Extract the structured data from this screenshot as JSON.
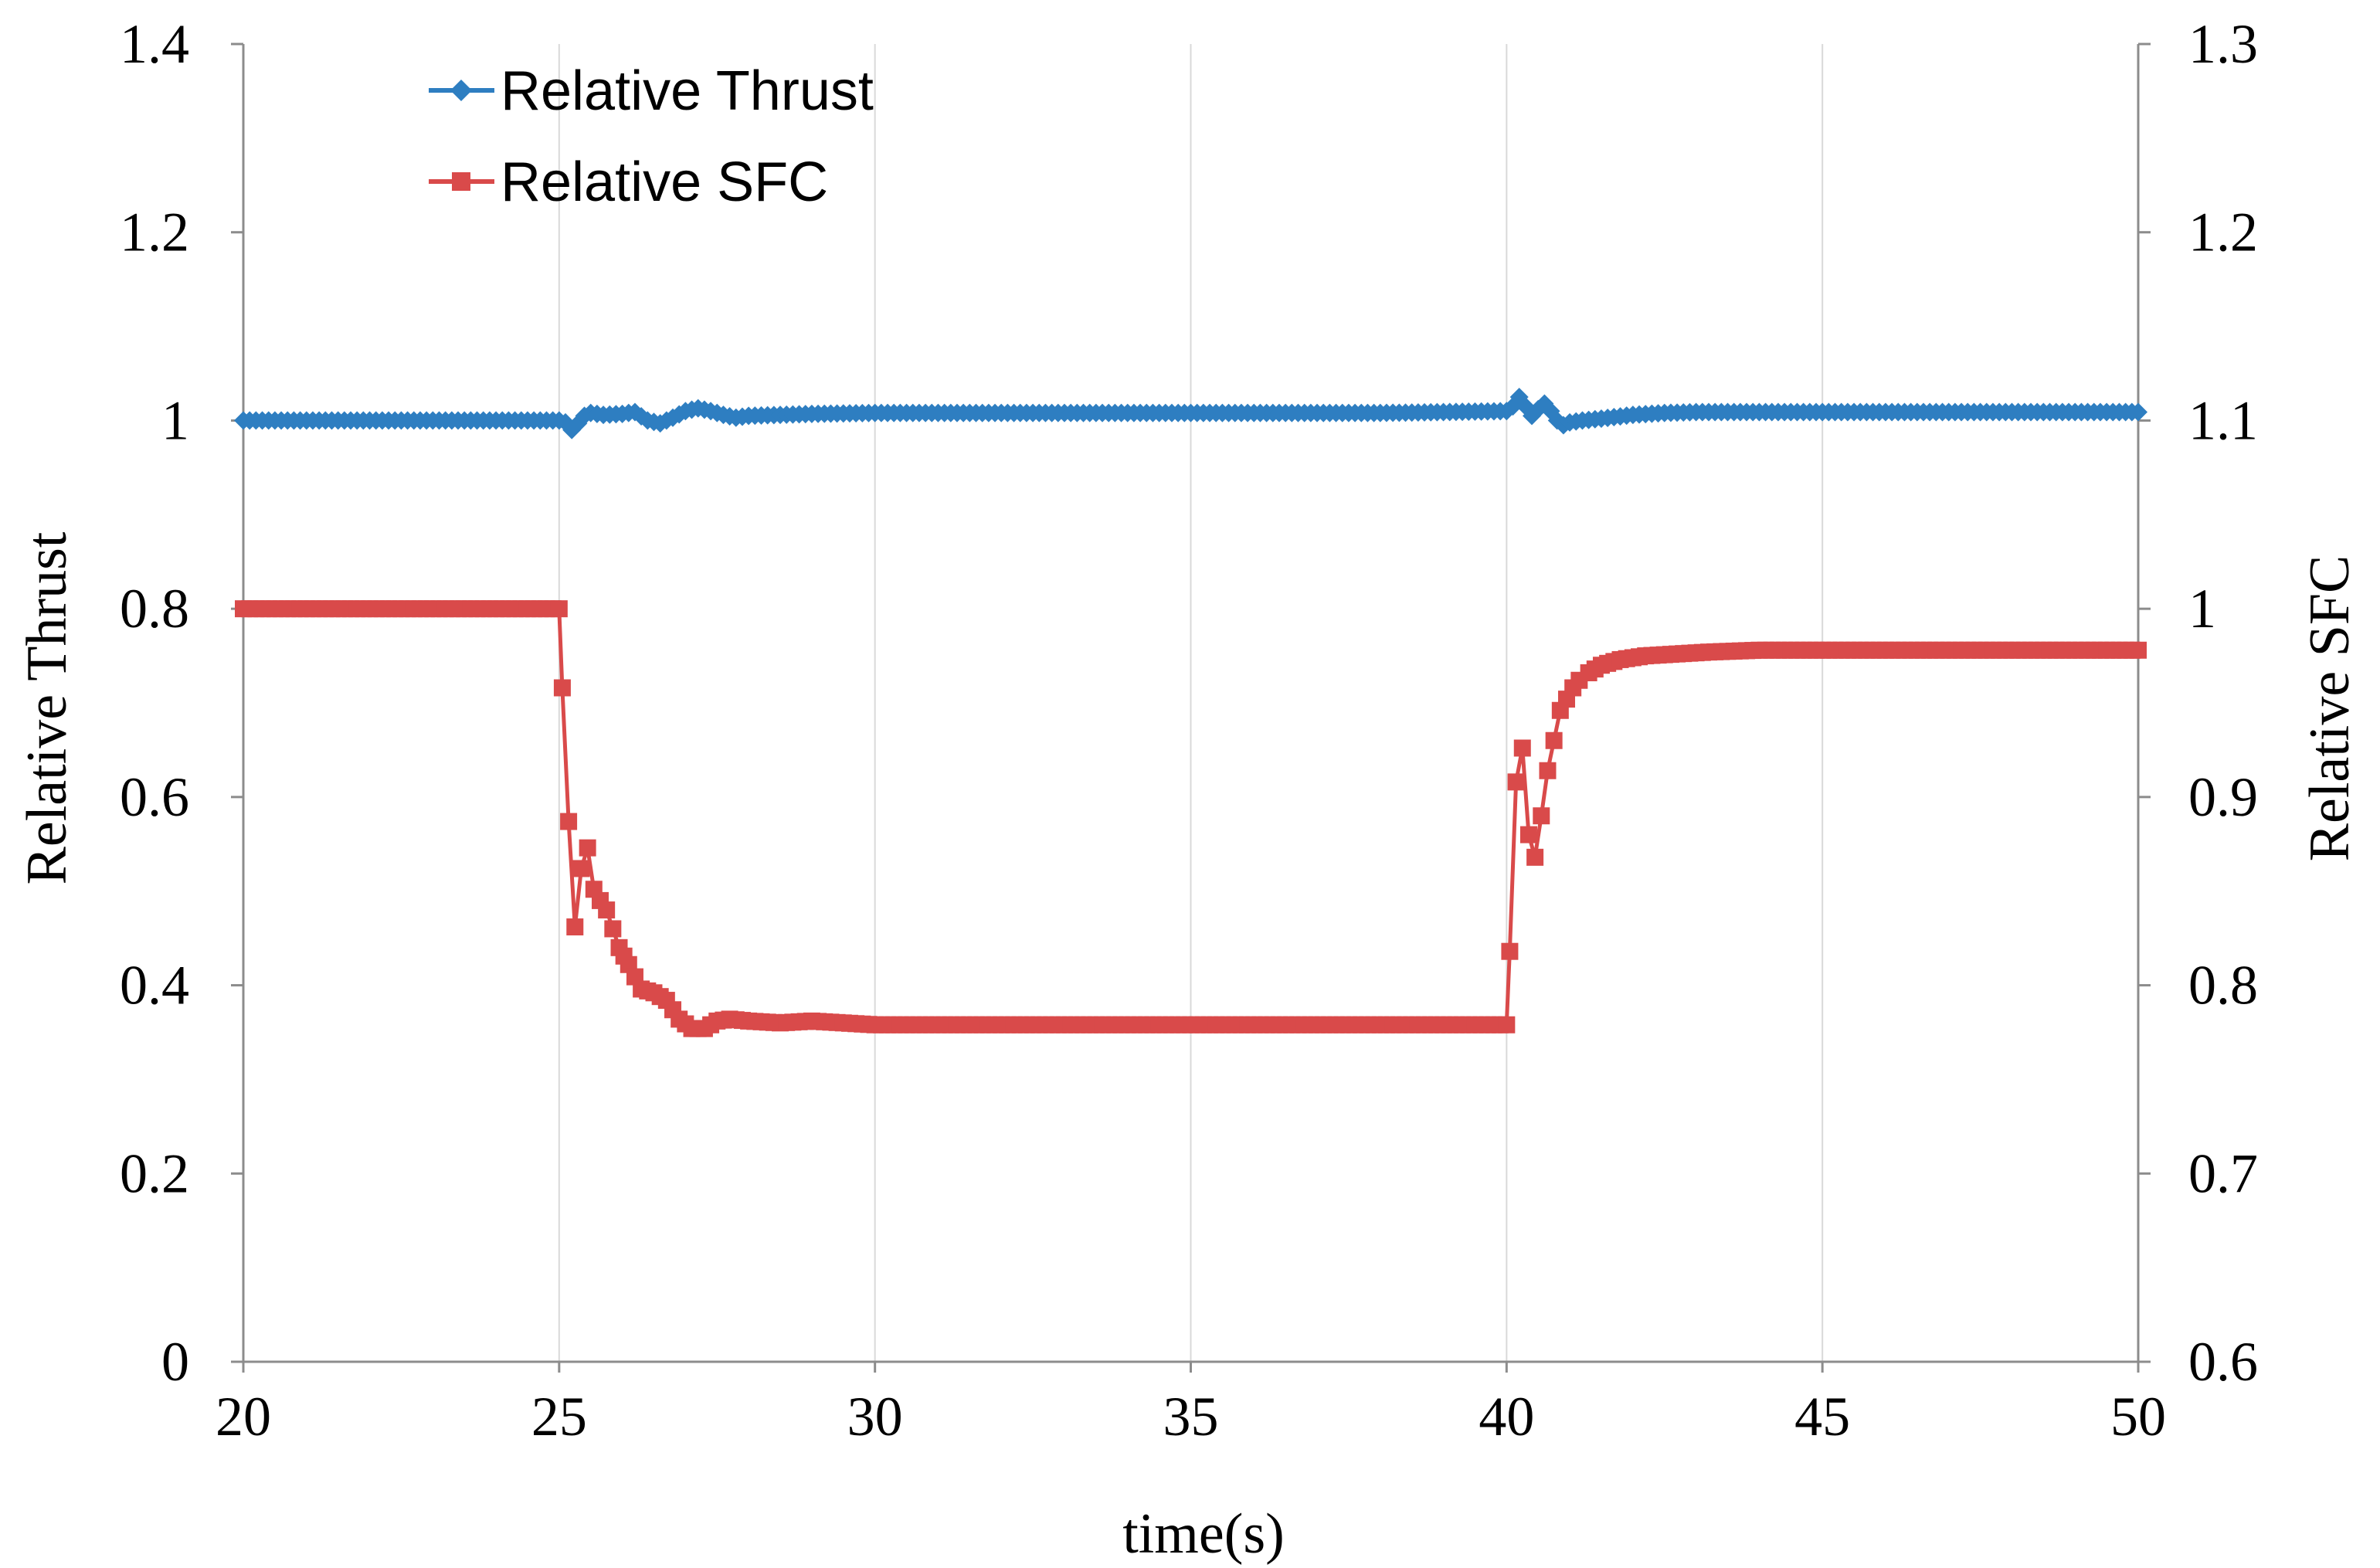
{
  "chart_data": {
    "type": "line",
    "xlabel": "time(s)",
    "ylabel_left": "Relative Thrust",
    "ylabel_right": "Relative SFC",
    "xlim": [
      20,
      50
    ],
    "ylim_left": [
      0,
      1.4
    ],
    "ylim_right": [
      0.6,
      1.3
    ],
    "x_ticks": [
      "20",
      "25",
      "30",
      "35",
      "40",
      "45",
      "50"
    ],
    "y_left_ticks": [
      "0",
      "0.2",
      "0.4",
      "0.6",
      "0.8",
      "1",
      "1.2",
      "1.4"
    ],
    "y_right_ticks": [
      "0.6",
      "0.7",
      "0.8",
      "0.9",
      "1",
      "1.1",
      "1.2",
      "1.3"
    ],
    "grid": "vertical",
    "legend_position": "top-left",
    "series": [
      {
        "name": "Relative Thrust",
        "axis": "left",
        "color": "#2E7EC1",
        "marker": "diamond",
        "x": [
          20,
          21,
          22,
          23,
          24,
          25,
          25.1,
          25.2,
          25.3,
          25.4,
          25.5,
          25.7,
          26,
          26.2,
          26.4,
          26.6,
          26.8,
          27,
          27.2,
          27.4,
          27.6,
          27.8,
          28,
          28.5,
          29,
          30,
          32,
          34,
          36,
          38,
          40,
          40.1,
          40.2,
          40.3,
          40.4,
          40.5,
          40.6,
          40.7,
          40.8,
          40.9,
          41,
          41.2,
          41.5,
          42,
          42.5,
          43,
          44,
          45,
          46,
          47,
          48,
          49,
          50
        ],
        "y": [
          1.0,
          1.0,
          1.0,
          1.0,
          1.0,
          1.0,
          0.998,
          0.99,
          0.997,
          1.005,
          1.008,
          1.006,
          1.007,
          1.009,
          1.0,
          0.997,
          1.003,
          1.01,
          1.013,
          1.01,
          1.006,
          1.003,
          1.005,
          1.006,
          1.007,
          1.008,
          1.008,
          1.008,
          1.008,
          1.008,
          1.01,
          1.015,
          1.025,
          1.015,
          1.005,
          1.012,
          1.018,
          1.01,
          1.0,
          0.995,
          0.998,
          1.0,
          1.002,
          1.006,
          1.008,
          1.009,
          1.009,
          1.009,
          1.009,
          1.009,
          1.009,
          1.009,
          1.009
        ]
      },
      {
        "name": "Relative SFC",
        "axis": "right",
        "color": "#D94A4A",
        "marker": "square",
        "x": [
          20,
          21,
          22,
          23,
          24,
          25,
          25.05,
          25.15,
          25.25,
          25.35,
          25.45,
          25.55,
          25.65,
          25.75,
          25.85,
          25.95,
          26.1,
          26.3,
          26.5,
          26.7,
          26.9,
          27.1,
          27.3,
          27.5,
          27.7,
          28,
          28.5,
          29,
          30,
          32,
          34,
          36,
          38,
          40,
          40.05,
          40.15,
          40.25,
          40.35,
          40.45,
          40.55,
          40.65,
          40.75,
          40.85,
          40.95,
          41.05,
          41.15,
          41.3,
          41.5,
          41.8,
          42.2,
          42.7,
          43.2,
          44,
          45,
          46,
          47,
          48,
          49,
          50
        ],
        "y": [
          1.0,
          1.0,
          1.0,
          1.0,
          1.0,
          1.0,
          0.958,
          0.887,
          0.831,
          0.862,
          0.873,
          0.851,
          0.845,
          0.84,
          0.83,
          0.82,
          0.811,
          0.798,
          0.796,
          0.792,
          0.782,
          0.777,
          0.777,
          0.781,
          0.782,
          0.781,
          0.78,
          0.781,
          0.779,
          0.779,
          0.779,
          0.779,
          0.779,
          0.779,
          0.818,
          0.908,
          0.926,
          0.88,
          0.868,
          0.89,
          0.914,
          0.93,
          0.946,
          0.952,
          0.958,
          0.962,
          0.966,
          0.97,
          0.973,
          0.975,
          0.976,
          0.977,
          0.978,
          0.978,
          0.978,
          0.978,
          0.978,
          0.978,
          0.978
        ]
      }
    ]
  },
  "colors": {
    "axis": "#8C8C8C",
    "grid": "#D9D9D9",
    "thrust": "#2E7EC1",
    "sfc": "#D94A4A"
  }
}
